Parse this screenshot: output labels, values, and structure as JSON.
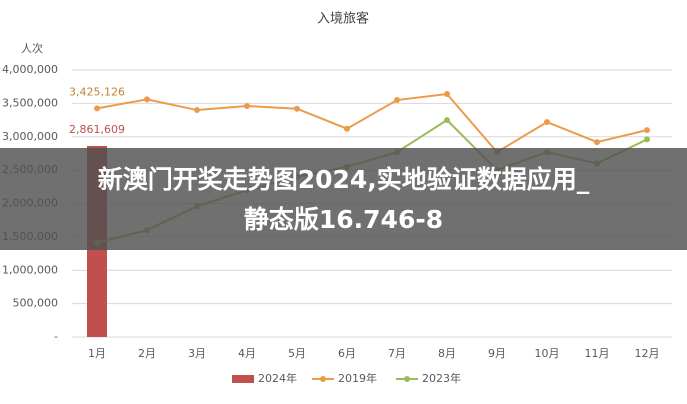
{
  "chart_data": {
    "type": "combo",
    "title": "入境旅客",
    "y_label": "人次",
    "categories": [
      "1月",
      "2月",
      "3月",
      "4月",
      "5月",
      "6月",
      "7月",
      "8月",
      "9月",
      "10月",
      "11月",
      "12月"
    ],
    "series": [
      {
        "name": "2024年",
        "type": "bar",
        "color": "#c0504d",
        "label_color": "#c0504d",
        "values": [
          2861609,
          null,
          null,
          null,
          null,
          null,
          null,
          null,
          null,
          null,
          null,
          null
        ],
        "value_labels": [
          "2,861,609",
          null,
          null,
          null,
          null,
          null,
          null,
          null,
          null,
          null,
          null,
          null
        ]
      },
      {
        "name": "2019年",
        "type": "line",
        "color": "#ed9a4c",
        "label_color": "#c0843a",
        "values": [
          3425126,
          3560000,
          3400000,
          3460000,
          3420000,
          3120000,
          3550000,
          3640000,
          2770000,
          3220000,
          2920000,
          3100000
        ],
        "value_labels": [
          "3,425,126",
          null,
          null,
          null,
          null,
          null,
          null,
          null,
          null,
          null,
          null,
          null
        ]
      },
      {
        "name": "2023年",
        "type": "line",
        "color": "#9bbb59",
        "values": [
          1410000,
          1600000,
          1960000,
          2200000,
          2400000,
          2550000,
          2770000,
          3250000,
          2500000,
          2770000,
          2600000,
          2960000
        ]
      }
    ],
    "ylim": [
      0,
      4000000
    ],
    "yticks": [
      {
        "value": 0,
        "label": "-"
      },
      {
        "value": 500000,
        "label": "500,000"
      },
      {
        "value": 1000000,
        "label": "1,000,000"
      },
      {
        "value": 1500000,
        "label": "1,500,000"
      },
      {
        "value": 2000000,
        "label": "2,000,000"
      },
      {
        "value": 2500000,
        "label": "2,500,000"
      },
      {
        "value": 3000000,
        "label": "3,000,000"
      },
      {
        "value": 3500000,
        "label": "3,500,000"
      },
      {
        "value": 4000000,
        "label": "4,000,000"
      }
    ],
    "grid": true,
    "legend": "bottom"
  },
  "banner_lines": [
    "新澳门开奖走势图2024,实地验证数据应用_",
    "静态版16.746-8"
  ]
}
